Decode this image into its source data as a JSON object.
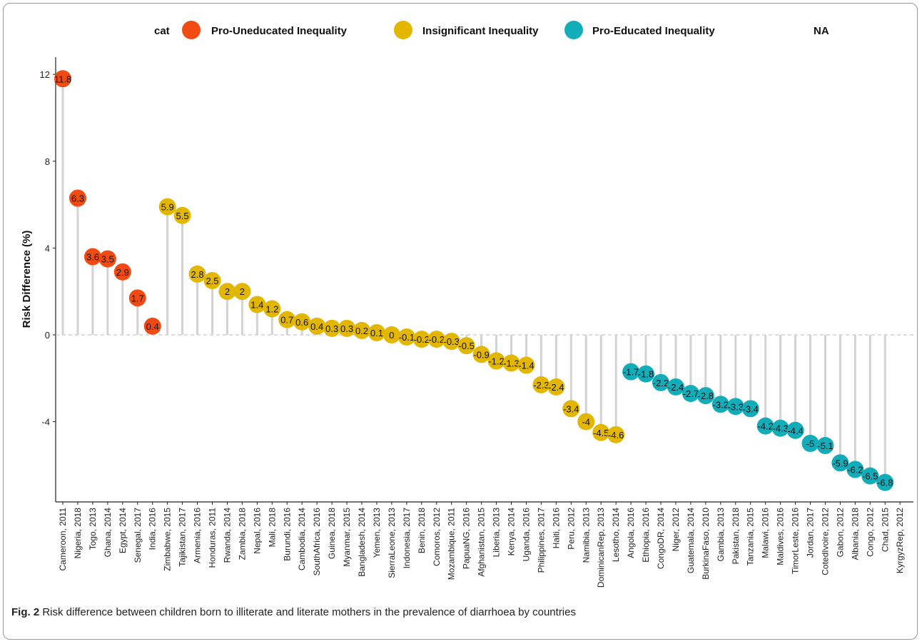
{
  "caption": {
    "label": "Fig. 2",
    "text": "Risk difference between children born to illiterate and literate mothers in the prevalence of diarrhoea by countries"
  },
  "legend": {
    "title": "cat",
    "items": [
      {
        "label": "Pro-Uneducated Inequality",
        "color": "#F24A13"
      },
      {
        "label": "Insignificant Inequality",
        "color": "#E3B600"
      },
      {
        "label": "Pro-Educated Inequality",
        "color": "#13ADBA"
      },
      {
        "label": "NA",
        "color": null
      }
    ]
  },
  "chart_data": {
    "type": "lollipop",
    "ylabel": "Risk Difference (%)",
    "xlabel": "",
    "yticks": [
      -4,
      0,
      4,
      8,
      12
    ],
    "ylim": [
      -7.6,
      12.8
    ],
    "reference_line": 0,
    "categories": [
      "Cameroon, 2011",
      "Nigeria, 2018",
      "Togo, 2013",
      "Ghana, 2014",
      "Egypt, 2014",
      "Senegal, 2017",
      "India, 2016",
      "Zimbabwe, 2015",
      "Tajikistan, 2017",
      "Armenia, 2016",
      "Honduras, 2011",
      "Rwanda, 2014",
      "Zambia, 2018",
      "Nepal, 2016",
      "Mali, 2018",
      "Burundi, 2016",
      "Cambodia, 2014",
      "SouthAfrica, 2016",
      "Guinea, 2018",
      "Myanmar, 2015",
      "Bangladesh, 2014",
      "Yemen, 2013",
      "SierraLeone, 2013",
      "Indonesia, 2017",
      "Benin, 2018",
      "Comoros, 2012",
      "Mozambique, 2011",
      "PapuaNG, 2016",
      "Afghanistan, 2015",
      "Liberia, 2013",
      "Kenya, 2014",
      "Uganda, 2016",
      "Philippines, 2017",
      "Haiti, 2016",
      "Peru, 2012",
      "Namibia, 2013",
      "DominicanRep, 2013",
      "Lesotho, 2014",
      "Angola, 2016",
      "Ethiopia, 2016",
      "CongoDR, 2014",
      "Niger, 2012",
      "Guatemala, 2014",
      "BurkinaFaso, 2010",
      "Gambia, 2013",
      "Pakistan, 2018",
      "Tanzania, 2015",
      "Malawi, 2016",
      "Maldives, 2016",
      "TimorLeste, 2016",
      "Jordan, 2017",
      "CotedIvoire, 2012",
      "Gabon, 2012",
      "Albania, 2018",
      "Congo, 2012",
      "Chad, 2015",
      "KyrgyzRep, 2012"
    ],
    "values": [
      11.8,
      6.3,
      3.6,
      3.5,
      2.9,
      1.7,
      0.4,
      5.9,
      5.5,
      2.8,
      2.5,
      2,
      2,
      1.4,
      1.2,
      0.7,
      0.6,
      0.4,
      0.3,
      0.3,
      0.2,
      0.1,
      0,
      -0.1,
      -0.2,
      -0.2,
      -0.3,
      -0.5,
      -0.9,
      -1.2,
      -1.3,
      -1.4,
      -2.3,
      -2.4,
      -3.4,
      -4,
      -4.5,
      -4.6,
      -1.7,
      -1.8,
      -2.2,
      -2.4,
      -2.7,
      -2.8,
      -3.2,
      -3.3,
      -3.4,
      -4.2,
      -4.3,
      -4.4,
      -5,
      -5.1,
      -5.9,
      -6.2,
      -6.5,
      -6.8,
      null
    ],
    "labels": [
      "11.8",
      "6.3",
      "3.6",
      "3.5",
      "2.9",
      "1.7",
      "0.4",
      "5.9",
      "5.5",
      "2.8",
      "2.5",
      "2",
      "2",
      "1.4",
      "1.2",
      "0.7",
      "0.6",
      "0.4",
      "0.3",
      "0.3",
      "0.2",
      "0.1",
      "0",
      "-0.1",
      "-0.2",
      "-0.2",
      "-0.3",
      "-0.5",
      "-0.9",
      "-1.2",
      "-1.3",
      "-1.4",
      "-2.3",
      "-2.4",
      "-3.4",
      "-4",
      "-4.5",
      "-4.6",
      "-1.7",
      "-1.8",
      "-2.2",
      "-2.4",
      "-2.7",
      "-2.8",
      "-3.2",
      "-3.3",
      "-3.4",
      "-4.2",
      "-4.3",
      "-4.4",
      "-5",
      "-5.1",
      "-5.9",
      "-6.2",
      "-6.5",
      "-6.8",
      ""
    ],
    "category_group": [
      "uned",
      "uned",
      "uned",
      "uned",
      "uned",
      "uned",
      "uned",
      "insig",
      "insig",
      "insig",
      "insig",
      "insig",
      "insig",
      "insig",
      "insig",
      "insig",
      "insig",
      "insig",
      "insig",
      "insig",
      "insig",
      "insig",
      "insig",
      "insig",
      "insig",
      "insig",
      "insig",
      "insig",
      "insig",
      "insig",
      "insig",
      "insig",
      "insig",
      "insig",
      "insig",
      "insig",
      "insig",
      "insig",
      "edu",
      "edu",
      "edu",
      "edu",
      "edu",
      "edu",
      "edu",
      "edu",
      "edu",
      "edu",
      "edu",
      "edu",
      "edu",
      "edu",
      "edu",
      "edu",
      "edu",
      "edu",
      "na"
    ],
    "group_colors": {
      "uned": "#F24A13",
      "insig": "#E3B600",
      "edu": "#13ADBA",
      "na": null
    },
    "stem_color": "#d3d3d3",
    "grid": false,
    "legend_position": "top"
  }
}
